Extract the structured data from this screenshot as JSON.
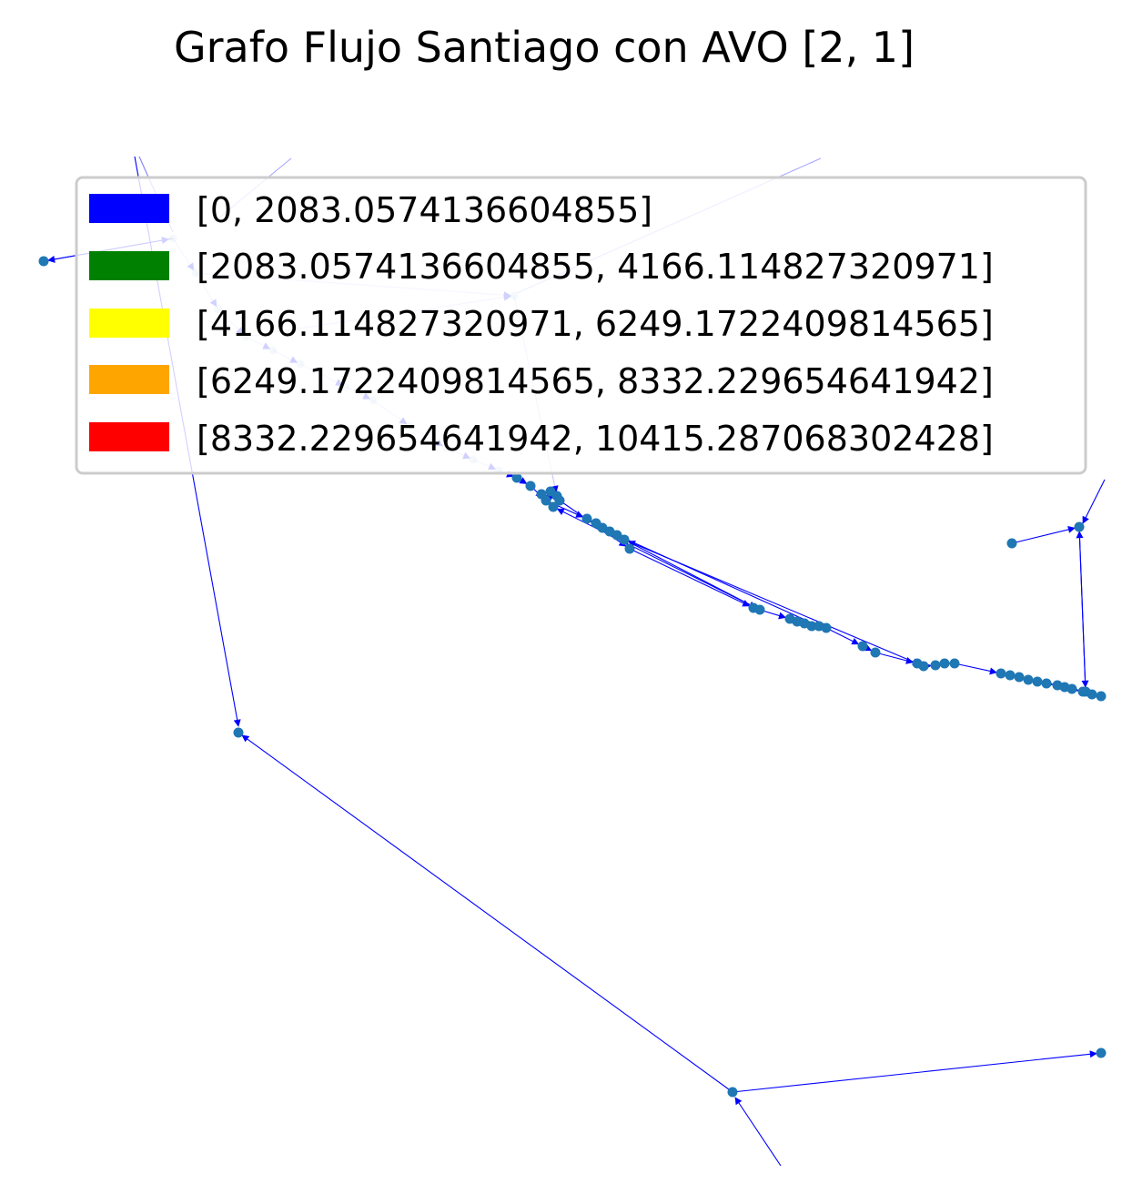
{
  "title": "Grafo Flujo Santiago con AVO [2, 1]",
  "legend": {
    "placement": "upper",
    "items": [
      {
        "label": "[0, 2083.0574136604855]",
        "color": "#0000ff"
      },
      {
        "label": "[2083.0574136604855, 4166.114827320971]",
        "color": "#008000"
      },
      {
        "label": "[4166.114827320971, 6249.1722409814565]",
        "color": "#ffff00"
      },
      {
        "label": "[6249.1722409814565, 8332.229654641942]",
        "color": "#ffa500"
      },
      {
        "label": "[8332.229654641942, 10415.287068302428]",
        "color": "#ff0000"
      }
    ]
  },
  "colors": {
    "edge": "#0000ff",
    "node": "#1f77b4"
  }
}
